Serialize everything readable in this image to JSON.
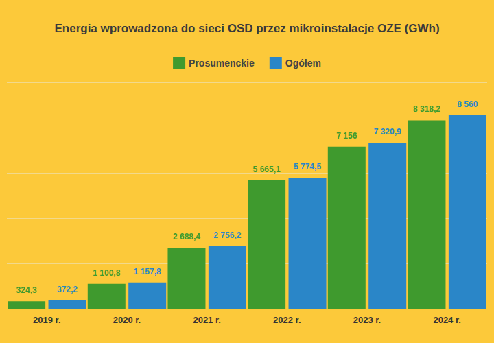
{
  "chart_data": {
    "type": "bar",
    "title": "Energia wprowadzona do sieci OSD przez mikroinstalacje OZE (GWh)",
    "categories": [
      "2019 r.",
      "2020 r.",
      "2021 r.",
      "2022 r.",
      "2023 r.",
      "2024 r."
    ],
    "series": [
      {
        "name": "Prosumenckie",
        "color": "#3f9a2e",
        "values": [
          324.3,
          1100.8,
          2688.4,
          5665.1,
          7156,
          8318.2
        ],
        "value_labels": [
          "324,3",
          "1 100,8",
          "2 688,4",
          "5 665,1",
          "7 156",
          "8 318,2"
        ]
      },
      {
        "name": "Ogółem",
        "color": "#2a86c8",
        "values": [
          372.2,
          1157.8,
          2756.2,
          5774.5,
          7320.9,
          8560
        ],
        "value_labels": [
          "372,2",
          "1 157,8",
          "2 756,2",
          "5 774,5",
          "7 320,9",
          "8 560"
        ]
      }
    ],
    "ylim": [
      0,
      10000
    ],
    "yticks": [
      0,
      2000,
      4000,
      6000,
      8000,
      10000
    ],
    "grid": true,
    "legend": "top",
    "data_labels": true,
    "tick_labels": "x"
  }
}
